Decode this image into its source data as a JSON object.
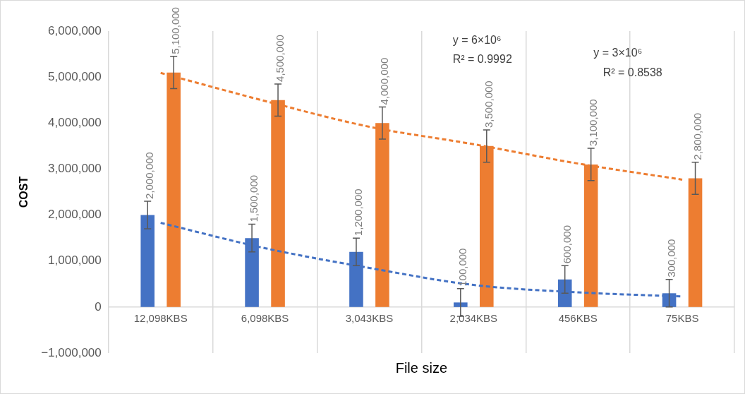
{
  "chart_data": {
    "type": "bar",
    "xlabel": "File size",
    "ylabel": "COST",
    "categories": [
      "12,098KBS",
      "6,098KBS",
      "3,043KBS",
      "2,034KBS",
      "456KBS",
      "75KBS"
    ],
    "series": [
      {
        "color": "#4472c4",
        "values": [
          2000000,
          1500000,
          1200000,
          100000,
          600000,
          300000
        ],
        "errors": [
          300000,
          300000,
          300000,
          300000,
          300000,
          300000
        ],
        "value_labels": [
          "2,000,000",
          "1,500,000",
          "1,200,000",
          "100,000",
          "600,000",
          "300,000"
        ]
      },
      {
        "color": "#ed7d31",
        "values": [
          5100000,
          4500000,
          4000000,
          3500000,
          3100000,
          2800000
        ],
        "errors": [
          350000,
          350000,
          350000,
          350000,
          350000,
          350000
        ],
        "value_labels": [
          "5,100,000",
          "4,500,000",
          "4,000,000",
          "3,500,000",
          "3,100,000",
          "2,800,000"
        ]
      },
      {
        "type": "line",
        "color": "#4472c4",
        "line_style": "dashed",
        "marker": "none",
        "values": [
          1830000,
          1280000,
          850000,
          480000,
          320000,
          230000
        ]
      },
      {
        "type": "line",
        "color": "#ed7d31",
        "line_style": "dashed",
        "marker": "none",
        "values": [
          5090000,
          4480000,
          3920000,
          3540000,
          3120000,
          2770000
        ]
      }
    ],
    "ylim": [
      -1000000,
      6000000
    ],
    "yticks": [
      {
        "value": -1000000,
        "label": "−1,000,000"
      },
      {
        "value": 0,
        "label": "0"
      },
      {
        "value": 1000000,
        "label": "1,000,000"
      },
      {
        "value": 2000000,
        "label": "2,000,000"
      },
      {
        "value": 3000000,
        "label": "3,000,000"
      },
      {
        "value": 4000000,
        "label": "4,000,000"
      },
      {
        "value": 5000000,
        "label": "5,000,000"
      },
      {
        "value": 6000000,
        "label": "6,000,000"
      }
    ],
    "grid": "x",
    "legend": false,
    "annotations": [
      "y = 6×10⁶",
      "R² = 0.9992",
      "y = 3×10⁶",
      "R² = 0.8538"
    ]
  }
}
